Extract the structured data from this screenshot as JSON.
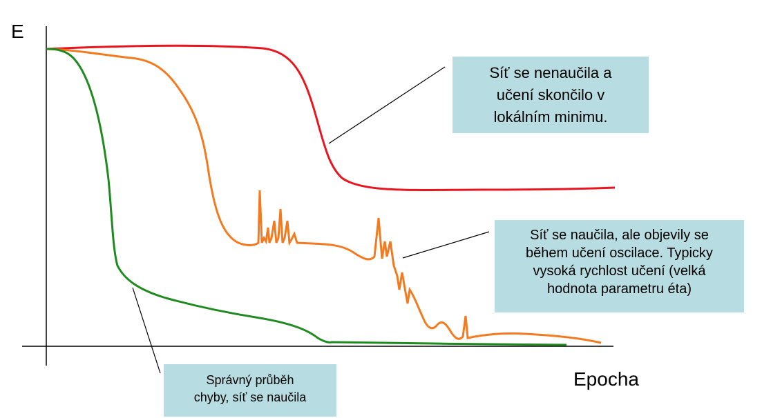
{
  "axes": {
    "y_label": "E",
    "x_label": "Epocha"
  },
  "colors": {
    "red_curve": "#e8141e",
    "orange_curve": "#f47a20",
    "green_curve": "#1f8a1f",
    "callout_fill": "#b7dde2"
  },
  "callouts": {
    "red": "Síť se nenaučila a\nučení skončilo v\nlokálním minimu.",
    "orange": "Síť se naučila, ale objevily se\nběhem učení oscilace. Typicky\nvysoká rychlost učení (velká\nhodnota parametru éta)",
    "green": "Správný průběh\nchyby, síť se naučila"
  }
}
